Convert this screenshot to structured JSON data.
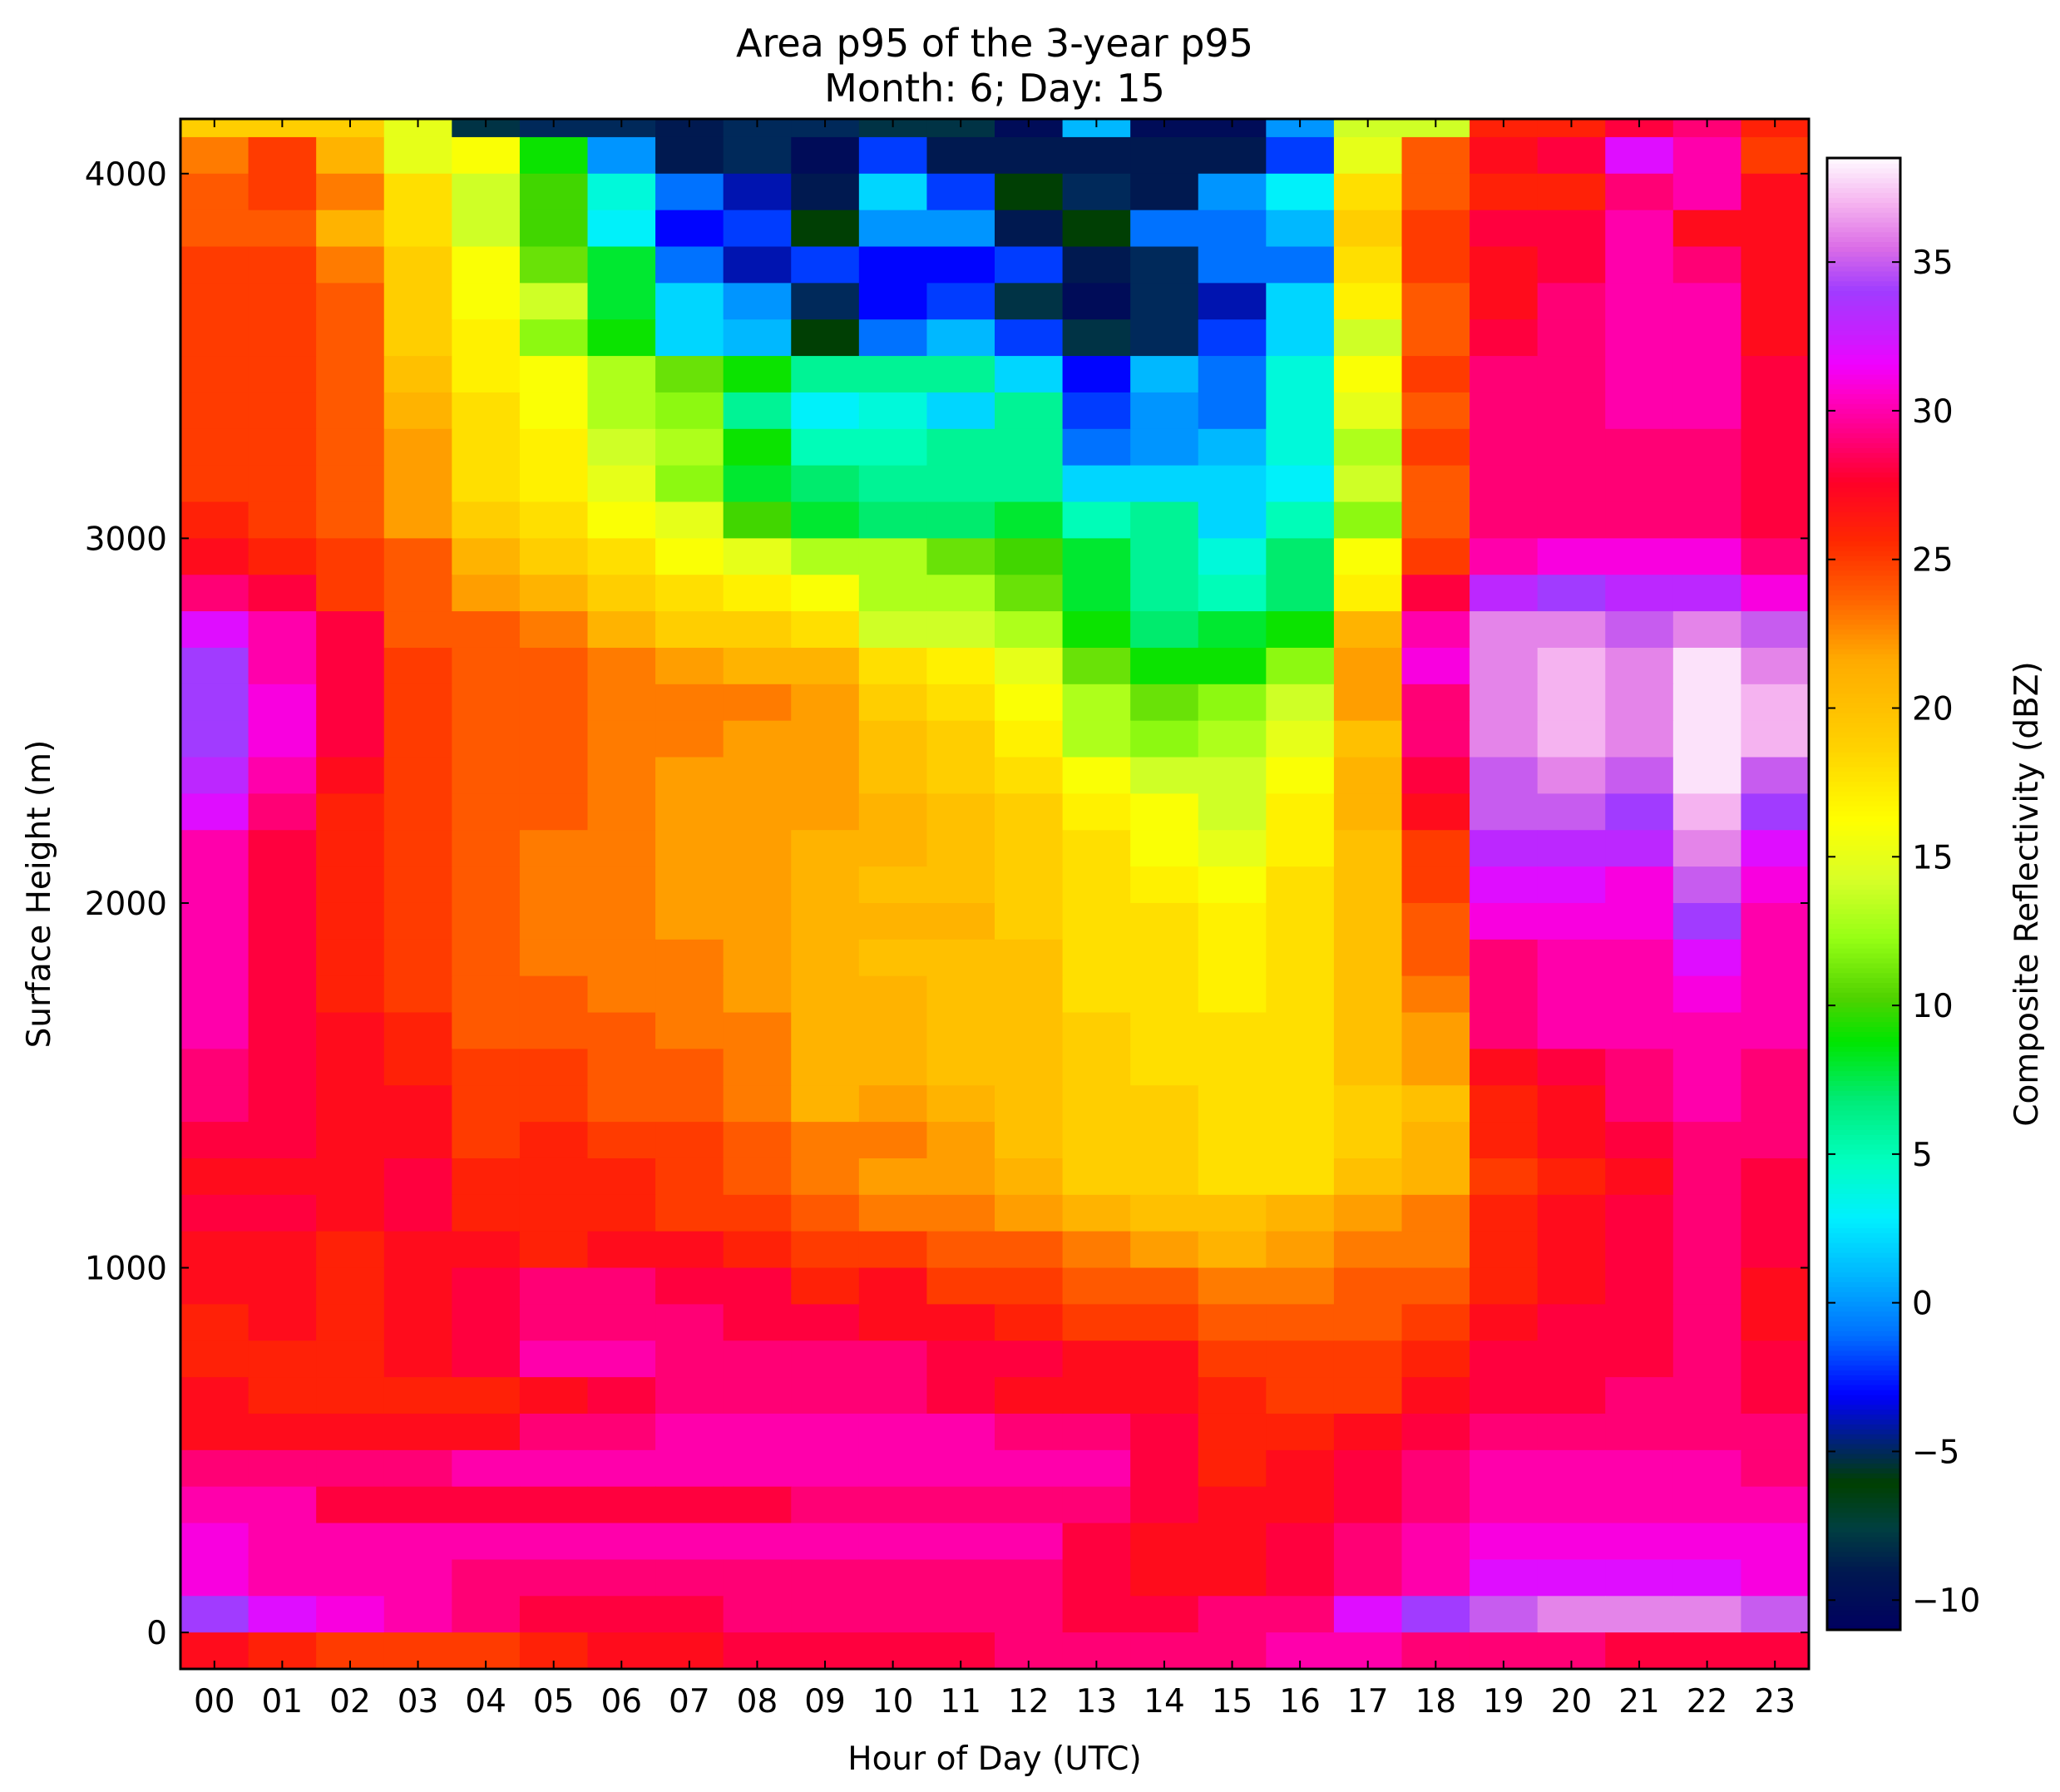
{
  "chart_data": {
    "type": "heatmap",
    "title": "Area p95 of the 3-year p95",
    "subtitle": "Month: 6; Day: 15",
    "xlabel": "Hour of Day (UTC)",
    "ylabel": "Surface Height (m)",
    "colorbar_label": "Composite Reflectivity (dBZ)",
    "x_categories": [
      "00",
      "01",
      "02",
      "03",
      "04",
      "05",
      "06",
      "07",
      "08",
      "09",
      "10",
      "11",
      "12",
      "13",
      "14",
      "15",
      "16",
      "17",
      "18",
      "19",
      "20",
      "21",
      "22",
      "23"
    ],
    "y_ticks": [
      0,
      1000,
      2000,
      3000,
      4000
    ],
    "y_tick_labels": [
      "0",
      "1000",
      "2000",
      "3000",
      "4000"
    ],
    "ylim": [
      -100,
      4150
    ],
    "y_bin_size": 100,
    "y_bins_start": -100,
    "colorbar_ticks": [
      -10,
      -5,
      0,
      5,
      10,
      15,
      20,
      25,
      30,
      35
    ],
    "colorbar_tick_labels": [
      "−10",
      "−5",
      "0",
      "5",
      "10",
      "15",
      "20",
      "25",
      "30",
      "35"
    ],
    "colorbar_range": [
      -11,
      38.5
    ],
    "colormap": "gist_ncar-like",
    "grid": false,
    "rows_top_to_bottom": [
      [
        19,
        19,
        19,
        15,
        -8,
        -5,
        -5,
        -9,
        -5,
        -5,
        -8,
        -8,
        -10,
        1,
        -10,
        -10,
        0,
        14,
        14,
        26,
        26,
        28,
        29,
        26
      ],
      [
        23,
        25,
        21,
        15,
        16,
        9,
        0,
        -9,
        -5,
        -10,
        -2,
        -9,
        -9,
        -9,
        -9,
        -9,
        -2,
        15,
        24,
        27,
        28,
        32,
        30,
        25
      ],
      [
        24,
        25,
        23,
        18,
        14,
        10,
        4,
        -1,
        -4,
        -9,
        2,
        -2,
        -6,
        -5,
        -9,
        0,
        3,
        18,
        24,
        26,
        26,
        29,
        30,
        27
      ],
      [
        24,
        24,
        21,
        18,
        14,
        10,
        3,
        -3,
        -2,
        -6,
        0,
        0,
        -9,
        -6,
        -1,
        -1,
        1,
        19,
        25,
        28,
        28,
        30,
        27,
        27
      ],
      [
        25,
        25,
        23,
        19,
        16,
        11,
        8,
        -1,
        -4,
        -2,
        -3,
        -3,
        -2,
        -9,
        -5,
        -1,
        -1,
        18,
        25,
        27,
        28,
        30,
        29,
        27
      ],
      [
        25,
        25,
        24,
        19,
        16,
        14,
        8,
        2,
        0,
        -5,
        -3,
        -2,
        -8,
        -10,
        -5,
        -4,
        2,
        17,
        24,
        27,
        29,
        30,
        30,
        27
      ],
      [
        25,
        25,
        24,
        19,
        17,
        12,
        9,
        2,
        1,
        -6,
        -1,
        1,
        -2,
        -8,
        -5,
        -2,
        2,
        14,
        24,
        28,
        29,
        30,
        30,
        27
      ],
      [
        25,
        25,
        24,
        20,
        17,
        16,
        13,
        11,
        9,
        6,
        6,
        6,
        2,
        -3,
        1,
        -1,
        4,
        16,
        25,
        29,
        29,
        30,
        30,
        28
      ],
      [
        25,
        25,
        24,
        21,
        18,
        16,
        13,
        12,
        6,
        3,
        4,
        2,
        6,
        -2,
        0,
        -1,
        4,
        15,
        24,
        29,
        29,
        30,
        30,
        28
      ],
      [
        25,
        25,
        24,
        22,
        18,
        17,
        14,
        13,
        9,
        5,
        5,
        6,
        6,
        -1,
        0,
        1,
        4,
        13,
        25,
        29,
        29,
        29,
        29,
        28
      ],
      [
        25,
        25,
        24,
        22,
        18,
        17,
        15,
        12,
        8,
        7,
        6,
        6,
        6,
        2,
        2,
        2,
        3,
        14,
        24,
        29,
        29,
        29,
        29,
        28
      ],
      [
        26,
        25,
        24,
        22,
        19,
        18,
        16,
        15,
        10,
        8,
        7,
        7,
        8,
        5,
        6,
        2,
        5,
        12,
        24,
        29,
        29,
        29,
        29,
        28
      ],
      [
        27,
        26,
        25,
        24,
        21,
        19,
        18,
        16,
        15,
        13,
        13,
        11,
        10,
        8,
        6,
        4,
        7,
        16,
        25,
        30,
        31,
        31,
        31,
        29
      ],
      [
        29,
        28,
        25,
        24,
        22,
        21,
        19,
        18,
        17,
        16,
        13,
        13,
        11,
        8,
        6,
        5,
        7,
        17,
        28,
        33,
        34,
        33,
        33,
        31
      ],
      [
        32,
        30,
        28,
        24,
        24,
        23,
        21,
        19,
        19,
        18,
        14,
        14,
        13,
        9,
        7,
        8,
        9,
        21,
        30,
        36,
        36,
        35,
        36,
        35
      ],
      [
        34,
        30,
        28,
        25,
        24,
        24,
        23,
        22,
        21,
        21,
        18,
        17,
        15,
        11,
        9,
        9,
        12,
        22,
        31,
        36,
        37,
        36,
        38,
        36
      ],
      [
        34,
        31,
        28,
        25,
        24,
        24,
        23,
        23,
        23,
        22,
        19,
        18,
        16,
        13,
        11,
        12,
        14,
        22,
        29,
        36,
        37,
        36,
        38,
        37
      ],
      [
        34,
        31,
        28,
        25,
        24,
        24,
        23,
        23,
        22,
        22,
        20,
        19,
        17,
        13,
        12,
        13,
        15,
        20,
        29,
        36,
        37,
        36,
        38,
        37
      ],
      [
        33,
        30,
        27,
        25,
        24,
        24,
        23,
        22,
        22,
        22,
        20,
        19,
        18,
        16,
        14,
        14,
        16,
        21,
        28,
        35,
        36,
        35,
        38,
        35
      ],
      [
        32,
        29,
        26,
        25,
        24,
        24,
        23,
        22,
        22,
        22,
        21,
        20,
        19,
        17,
        16,
        14,
        17,
        21,
        27,
        35,
        35,
        34,
        37,
        34
      ],
      [
        30,
        28,
        26,
        25,
        24,
        23,
        23,
        22,
        22,
        21,
        21,
        20,
        19,
        18,
        16,
        15,
        17,
        20,
        25,
        33,
        33,
        33,
        36,
        32
      ],
      [
        30,
        28,
        26,
        25,
        24,
        23,
        23,
        22,
        22,
        21,
        20,
        20,
        19,
        18,
        17,
        16,
        18,
        20,
        25,
        32,
        32,
        31,
        35,
        31
      ],
      [
        30,
        28,
        26,
        25,
        24,
        23,
        23,
        22,
        22,
        21,
        21,
        21,
        19,
        18,
        18,
        17,
        18,
        20,
        24,
        31,
        31,
        31,
        34,
        30
      ],
      [
        30,
        28,
        26,
        25,
        24,
        23,
        23,
        23,
        22,
        21,
        20,
        20,
        20,
        18,
        18,
        17,
        18,
        20,
        24,
        29,
        30,
        30,
        32,
        30
      ],
      [
        30,
        28,
        26,
        25,
        24,
        24,
        23,
        23,
        22,
        21,
        21,
        20,
        20,
        18,
        18,
        17,
        18,
        20,
        23,
        29,
        30,
        30,
        31,
        30
      ],
      [
        30,
        28,
        27,
        26,
        24,
        24,
        24,
        23,
        23,
        21,
        21,
        20,
        20,
        19,
        18,
        18,
        18,
        20,
        22,
        29,
        30,
        30,
        30,
        30
      ],
      [
        29,
        28,
        27,
        26,
        25,
        25,
        24,
        24,
        23,
        21,
        21,
        20,
        20,
        19,
        18,
        18,
        18,
        20,
        22,
        27,
        28,
        29,
        30,
        29
      ],
      [
        29,
        28,
        27,
        27,
        25,
        25,
        24,
        24,
        23,
        21,
        22,
        21,
        20,
        19,
        19,
        18,
        18,
        19,
        20,
        26,
        27,
        29,
        30,
        29
      ],
      [
        28,
        28,
        27,
        27,
        25,
        26,
        25,
        25,
        24,
        23,
        23,
        22,
        20,
        19,
        19,
        18,
        18,
        19,
        21,
        26,
        27,
        28,
        29,
        29
      ],
      [
        27,
        27,
        27,
        28,
        26,
        26,
        26,
        25,
        24,
        23,
        22,
        22,
        21,
        19,
        19,
        18,
        18,
        20,
        21,
        25,
        26,
        27,
        29,
        28
      ],
      [
        28,
        28,
        27,
        28,
        26,
        26,
        26,
        25,
        25,
        24,
        23,
        23,
        22,
        21,
        20,
        20,
        21,
        22,
        23,
        26,
        27,
        28,
        29,
        28
      ],
      [
        27,
        27,
        26,
        27,
        27,
        26,
        27,
        27,
        26,
        25,
        25,
        24,
        24,
        23,
        22,
        21,
        22,
        23,
        23,
        26,
        27,
        28,
        29,
        28
      ],
      [
        27,
        27,
        26,
        27,
        28,
        29,
        29,
        28,
        28,
        26,
        27,
        25,
        25,
        24,
        24,
        23,
        23,
        24,
        24,
        26,
        27,
        28,
        29,
        27
      ],
      [
        26,
        27,
        26,
        27,
        28,
        29,
        29,
        29,
        28,
        28,
        27,
        27,
        26,
        25,
        25,
        24,
        24,
        24,
        25,
        27,
        28,
        28,
        29,
        27
      ],
      [
        26,
        26,
        26,
        27,
        28,
        30,
        30,
        29,
        29,
        29,
        29,
        28,
        28,
        27,
        27,
        25,
        25,
        25,
        26,
        28,
        28,
        28,
        29,
        28
      ],
      [
        27,
        26,
        26,
        26,
        26,
        27,
        28,
        29,
        29,
        29,
        29,
        28,
        27,
        27,
        27,
        26,
        25,
        25,
        27,
        28,
        28,
        29,
        29,
        28
      ],
      [
        27,
        27,
        27,
        27,
        27,
        29,
        29,
        30,
        30,
        30,
        30,
        30,
        29,
        29,
        28,
        26,
        26,
        27,
        28,
        29,
        29,
        29,
        29,
        29
      ],
      [
        29,
        29,
        29,
        29,
        30,
        30,
        30,
        30,
        30,
        30,
        30,
        30,
        30,
        30,
        28,
        26,
        27,
        28,
        29,
        30,
        30,
        30,
        30,
        29
      ],
      [
        30,
        30,
        28,
        28,
        28,
        28,
        28,
        28,
        28,
        29,
        29,
        29,
        29,
        29,
        28,
        27,
        27,
        28,
        29,
        30,
        30,
        30,
        30,
        30
      ],
      [
        31,
        30,
        30,
        30,
        30,
        30,
        30,
        30,
        30,
        30,
        30,
        30,
        30,
        28,
        27,
        27,
        28,
        29,
        30,
        31,
        31,
        31,
        31,
        31
      ],
      [
        31,
        30,
        30,
        30,
        29,
        29,
        29,
        29,
        29,
        29,
        29,
        29,
        29,
        28,
        27,
        27,
        28,
        29,
        30,
        32,
        32,
        32,
        32,
        31
      ],
      [
        34,
        32,
        31,
        30,
        29,
        28,
        28,
        28,
        29,
        29,
        29,
        29,
        29,
        28,
        28,
        29,
        29,
        32,
        34,
        35,
        36,
        36,
        36,
        35
      ],
      [
        27,
        26,
        25,
        25,
        25,
        26,
        27,
        27,
        28,
        28,
        28,
        28,
        29,
        29,
        29,
        29,
        30,
        30,
        29,
        29,
        29,
        28,
        28,
        28
      ]
    ]
  }
}
